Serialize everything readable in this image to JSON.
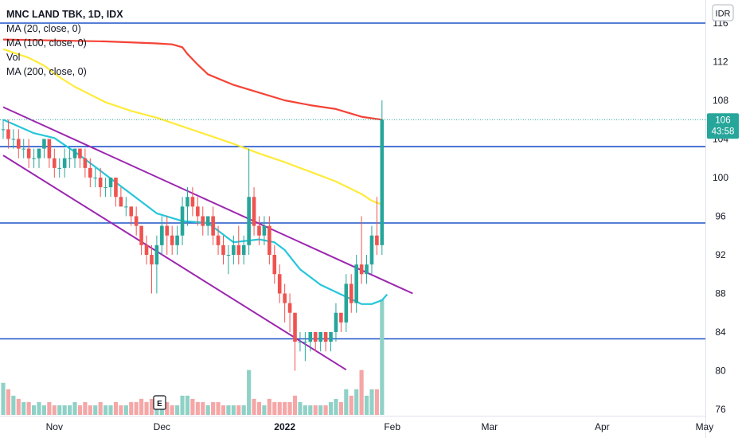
{
  "chart_data": {
    "type": "candlestick",
    "symbol_title": "MNC LAND TBK, 1D, IDX",
    "indicators": [
      {
        "label": "MA (20, close, 0)",
        "color": "#26c6da"
      },
      {
        "label": "MA (100, close, 0)",
        "color": "#ffeb3b"
      },
      {
        "label": "Vol",
        "color": "#131722"
      },
      {
        "label": "MA (200, close, 0)",
        "color": "#f44336"
      }
    ],
    "currency": "IDR",
    "y_axis": {
      "ticks": [
        116,
        112,
        108,
        104,
        100,
        96,
        92,
        88,
        84,
        80,
        76
      ],
      "range": [
        75.5,
        117
      ]
    },
    "x_axis": {
      "labels": [
        {
          "text": "Nov",
          "bar": 10,
          "bold": false
        },
        {
          "text": "Dec",
          "bar": 31,
          "bold": false
        },
        {
          "text": "2022",
          "bar": 55,
          "bold": true
        },
        {
          "text": "Feb",
          "bar": 76,
          "bold": false
        },
        {
          "text": "Mar",
          "bar": 95,
          "bold": false
        },
        {
          "text": "Apr",
          "bar": 117,
          "bold": false
        },
        {
          "text": "May",
          "bar": 137,
          "bold": false
        }
      ],
      "bar_count_visible": 154
    },
    "last_price": {
      "value": "106",
      "countdown": "43:58",
      "price": 106
    },
    "colors": {
      "up": "#26a69a",
      "down": "#ef5350",
      "ma20": "#26c6da",
      "ma100": "#ffeb3b",
      "ma200": "#f44336",
      "channel": "#9c27b0",
      "level": "#1e53c7",
      "vol_up": "#8fd1c6",
      "vol_down": "#f5a6a6"
    },
    "candles": [
      [
        105,
        106,
        104,
        105,
        10
      ],
      [
        105,
        106,
        103,
        104,
        8
      ],
      [
        104,
        105,
        103,
        104,
        6
      ],
      [
        104,
        105,
        102,
        103,
        5
      ],
      [
        103,
        104,
        102,
        103,
        4
      ],
      [
        103,
        104,
        101,
        102,
        4
      ],
      [
        102,
        103,
        101,
        102,
        3
      ],
      [
        102,
        103,
        101,
        103,
        4
      ],
      [
        103,
        104,
        102,
        104,
        3
      ],
      [
        104,
        104,
        101,
        102,
        4
      ],
      [
        102,
        103,
        100,
        101,
        3
      ],
      [
        101,
        102,
        100,
        101,
        3
      ],
      [
        101,
        103,
        100,
        102,
        3
      ],
      [
        102,
        103,
        101,
        102,
        3
      ],
      [
        102,
        103,
        101,
        103,
        4
      ],
      [
        103,
        103,
        101,
        102,
        3
      ],
      [
        102,
        103,
        100,
        101,
        4
      ],
      [
        101,
        102,
        99,
        100,
        3
      ],
      [
        100,
        101,
        99,
        100,
        3
      ],
      [
        100,
        101,
        98,
        99,
        4
      ],
      [
        99,
        100,
        98,
        99,
        3
      ],
      [
        99,
        100,
        98,
        100,
        3
      ],
      [
        100,
        100,
        97,
        98,
        4
      ],
      [
        98,
        99,
        97,
        97,
        3
      ],
      [
        97,
        98,
        96,
        97,
        3
      ],
      [
        97,
        97,
        95,
        96,
        4
      ],
      [
        96,
        97,
        94,
        95,
        4
      ],
      [
        95,
        95,
        92,
        93,
        5
      ],
      [
        93,
        94,
        91,
        92,
        4
      ],
      [
        92,
        93,
        88,
        91,
        5
      ],
      [
        91,
        94,
        88,
        93,
        4
      ],
      [
        93,
        96,
        92,
        95,
        5
      ],
      [
        95,
        96,
        92,
        94,
        4
      ],
      [
        94,
        95,
        92,
        93,
        3
      ],
      [
        93,
        95,
        92,
        94,
        3
      ],
      [
        94,
        98,
        93,
        97,
        6
      ],
      [
        97,
        99,
        95,
        98,
        6
      ],
      [
        98,
        99,
        96,
        97,
        5
      ],
      [
        97,
        98,
        95,
        96,
        4
      ],
      [
        96,
        97,
        94,
        95,
        4
      ],
      [
        95,
        96,
        94,
        96,
        3
      ],
      [
        96,
        97,
        93,
        94,
        4
      ],
      [
        94,
        95,
        92,
        93,
        4
      ],
      [
        93,
        94,
        91,
        92,
        3
      ],
      [
        92,
        93,
        90,
        92,
        3
      ],
      [
        92,
        94,
        91,
        93,
        3
      ],
      [
        93,
        95,
        91,
        92,
        3
      ],
      [
        92,
        94,
        91,
        93,
        3
      ],
      [
        93,
        103,
        92,
        98,
        14
      ],
      [
        98,
        99,
        94,
        95,
        5
      ],
      [
        95,
        96,
        93,
        94,
        4
      ],
      [
        94,
        96,
        93,
        95,
        3
      ],
      [
        95,
        96,
        91,
        92,
        5
      ],
      [
        92,
        93,
        89,
        90,
        4
      ],
      [
        90,
        91,
        87,
        88,
        4
      ],
      [
        88,
        89,
        85,
        87,
        4
      ],
      [
        87,
        88,
        84,
        86,
        4
      ],
      [
        86,
        86,
        80,
        83,
        6
      ],
      [
        83,
        84,
        82,
        83,
        4
      ],
      [
        83,
        84,
        81,
        83,
        3
      ],
      [
        83,
        84,
        82,
        84,
        3
      ],
      [
        84,
        84,
        82,
        83,
        3
      ],
      [
        83,
        84,
        82,
        84,
        3
      ],
      [
        84,
        84,
        82,
        83,
        3
      ],
      [
        83,
        84,
        82,
        84,
        4
      ],
      [
        84,
        87,
        83,
        86,
        5
      ],
      [
        86,
        86,
        84,
        85,
        4
      ],
      [
        85,
        90,
        84,
        89,
        8
      ],
      [
        89,
        90,
        86,
        87,
        6
      ],
      [
        87,
        92,
        86,
        91,
        8
      ],
      [
        91,
        96,
        89,
        90,
        14
      ],
      [
        90,
        92,
        89,
        91,
        6
      ],
      [
        91,
        95,
        90,
        94,
        8
      ],
      [
        94,
        98,
        92,
        93,
        8
      ],
      [
        93,
        108,
        92,
        106,
        36
      ]
    ],
    "ma20": [
      [
        0,
        106.0
      ],
      [
        6,
        104.6
      ],
      [
        10,
        104.1
      ],
      [
        15,
        102.3
      ],
      [
        20,
        100.3
      ],
      [
        25,
        98.3
      ],
      [
        30,
        96.3
      ],
      [
        35,
        95.5
      ],
      [
        40,
        95.3
      ],
      [
        45,
        93.3
      ],
      [
        50,
        93.6
      ],
      [
        53,
        93.3
      ],
      [
        55,
        92.5
      ],
      [
        58,
        90.5
      ],
      [
        62,
        88.9
      ],
      [
        66,
        87.9
      ],
      [
        70,
        86.9
      ],
      [
        72,
        86.9
      ],
      [
        74,
        87.3
      ],
      [
        75,
        87.9
      ]
    ],
    "ma100": [
      [
        0,
        113.3
      ],
      [
        5,
        112.4
      ],
      [
        8,
        111.6
      ],
      [
        11,
        110.4
      ],
      [
        14,
        109.4
      ],
      [
        17,
        108.6
      ],
      [
        20,
        107.8
      ],
      [
        25,
        106.9
      ],
      [
        30,
        106.2
      ],
      [
        35,
        105.3
      ],
      [
        40,
        104.4
      ],
      [
        45,
        103.5
      ],
      [
        50,
        102.5
      ],
      [
        55,
        101.6
      ],
      [
        60,
        100.6
      ],
      [
        65,
        99.6
      ],
      [
        70,
        98.3
      ],
      [
        72,
        97.6
      ],
      [
        74,
        97.2
      ]
    ],
    "ma200": [
      [
        0,
        114.3
      ],
      [
        10,
        114.2
      ],
      [
        20,
        114.1
      ],
      [
        30,
        113.9
      ],
      [
        33,
        113.8
      ],
      [
        35,
        113.5
      ],
      [
        36,
        112.8
      ],
      [
        38,
        111.7
      ],
      [
        40,
        110.7
      ],
      [
        45,
        109.6
      ],
      [
        50,
        108.8
      ],
      [
        55,
        108.0
      ],
      [
        60,
        107.5
      ],
      [
        65,
        107.1
      ],
      [
        70,
        106.3
      ],
      [
        74,
        106.0
      ]
    ],
    "channel_lines": [
      {
        "from": [
          0,
          107.3
        ],
        "to": [
          80,
          88.0
        ]
      },
      {
        "from": [
          0,
          102.3
        ],
        "to": [
          67,
          80.1
        ]
      }
    ],
    "horizontal_levels": [
      116.0,
      103.2,
      95.3,
      83.3
    ]
  }
}
